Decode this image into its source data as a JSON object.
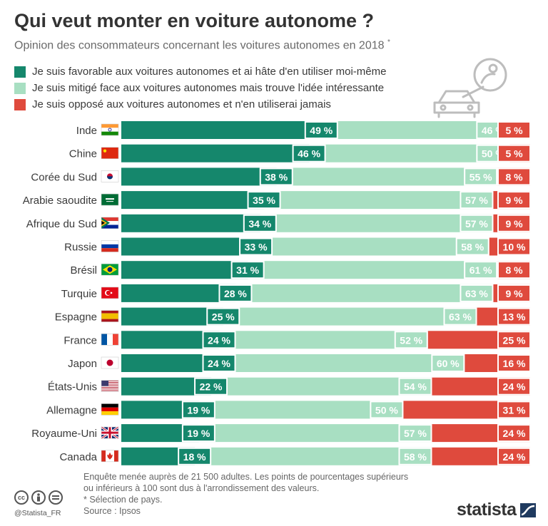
{
  "title": "Qui veut monter en voiture autonome ?",
  "subtitle": "Opinion des consommateurs concernant les voitures autonomes en 2018",
  "subtitle_mark": "*",
  "colors": {
    "favorable": "#15876c",
    "mitige": "#a8dfc2",
    "oppose": "#df4a3d"
  },
  "legend": [
    {
      "label": "Je suis favorable aux voitures autonomes et ai hâte d'en utiliser moi-même",
      "color": "#15876c"
    },
    {
      "label": "Je suis mitigé face aux voitures autonomes mais trouve l'idée intéressante",
      "color": "#a8dfc2"
    },
    {
      "label": "Je suis opposé aux voitures autonomes et n'en utiliserai jamais",
      "color": "#df4a3d"
    }
  ],
  "chart_data": {
    "type": "bar",
    "orientation": "horizontal",
    "stacked": true,
    "unit": "%",
    "title": "Qui veut monter en voiture autonome ?",
    "categories": [
      "Inde",
      "Chine",
      "Corée du Sud",
      "Arabie saoudite",
      "Afrique du Sud",
      "Russie",
      "Brésil",
      "Turquie",
      "Espagne",
      "France",
      "Japon",
      "États-Unis",
      "Allemagne",
      "Royaume-Uni",
      "Canada"
    ],
    "flags": [
      "india-flag-icon",
      "china-flag-icon",
      "south-korea-flag-icon",
      "saudi-arabia-flag-icon",
      "south-africa-flag-icon",
      "russia-flag-icon",
      "brazil-flag-icon",
      "turkey-flag-icon",
      "spain-flag-icon",
      "france-flag-icon",
      "japan-flag-icon",
      "usa-flag-icon",
      "germany-flag-icon",
      "uk-flag-icon",
      "canada-flag-icon"
    ],
    "series": [
      {
        "name": "Je suis favorable aux voitures autonomes et ai hâte d'en utiliser moi-même",
        "color": "#15876c",
        "values": [
          49,
          46,
          38,
          35,
          34,
          33,
          31,
          28,
          25,
          24,
          24,
          22,
          19,
          19,
          18
        ]
      },
      {
        "name": "Je suis mitigé face aux voitures autonomes mais trouve l'idée intéressante",
        "color": "#a8dfc2",
        "values": [
          46,
          50,
          55,
          57,
          57,
          58,
          61,
          63,
          63,
          52,
          60,
          54,
          50,
          57,
          58
        ]
      },
      {
        "name": "Je suis opposé aux voitures autonomes et n'en utiliserai jamais",
        "color": "#df4a3d",
        "values": [
          5,
          5,
          8,
          9,
          9,
          10,
          8,
          9,
          13,
          25,
          16,
          24,
          31,
          24,
          24
        ]
      }
    ],
    "xlim": [
      0,
      100
    ],
    "grid": false,
    "legend_position": "top-left"
  },
  "footnote": {
    "lines": [
      "Enquête menée auprès de 21 500 adultes. Les points de pourcentages supérieurs",
      "ou inférieurs à 100 sont dus à l'arrondissement des valeurs.",
      "* Sélection de pays.",
      "Source : Ipsos"
    ]
  },
  "footer": {
    "handle": "@Statista_FR",
    "brand": "statista",
    "license_icons": [
      "creative-commons-icon",
      "attribution-icon",
      "no-derivatives-icon"
    ]
  }
}
